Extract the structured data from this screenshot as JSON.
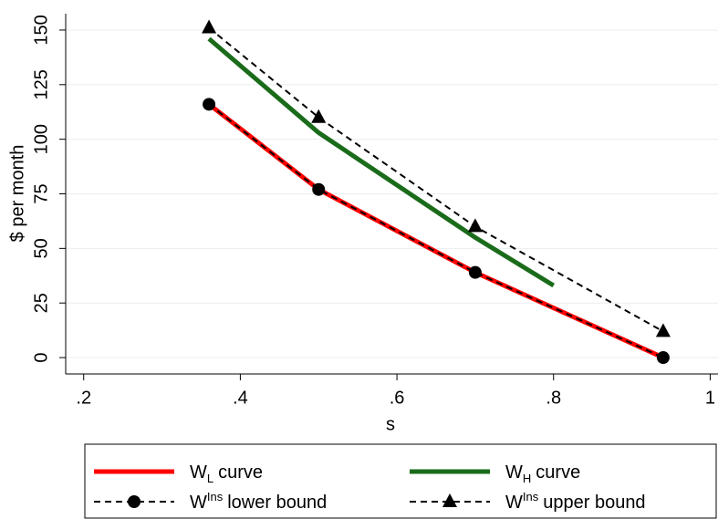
{
  "chart_data": {
    "type": "line",
    "xlabel": "s",
    "ylabel": "$ per month",
    "xlim": [
      0.177,
      1.01
    ],
    "ylim": [
      -7.5,
      157.5
    ],
    "xticks": [
      {
        "value": 0.2,
        "label": ".2"
      },
      {
        "value": 0.4,
        "label": ".4"
      },
      {
        "value": 0.6,
        "label": ".6"
      },
      {
        "value": 0.8,
        "label": ".8"
      },
      1
    ],
    "yticks": [
      0,
      25,
      50,
      75,
      100,
      125,
      150
    ],
    "grid": true,
    "series": [
      {
        "name": {
          "base": "W",
          "sub": "L",
          "rest": "curve"
        },
        "color": "#ff0000",
        "style": "solid",
        "x": [
          0.36,
          0.5,
          0.7,
          0.94
        ],
        "values": [
          116,
          77,
          39,
          0
        ]
      },
      {
        "name": {
          "base": "W",
          "sub": "H",
          "rest": "curve"
        },
        "color": "#1a6b1a",
        "style": "solid",
        "x": [
          0.36,
          0.5,
          0.7,
          0.8
        ],
        "values": [
          146,
          103,
          55,
          33
        ]
      },
      {
        "name": {
          "base": "W",
          "sup": "Ins",
          "rest": "lower bound"
        },
        "color": "#000000",
        "style": "dashed",
        "marker": "circle",
        "x": [
          0.36,
          0.5,
          0.7,
          0.94
        ],
        "values": [
          116,
          77,
          39,
          0
        ]
      },
      {
        "name": {
          "base": "W",
          "sup": "Ins",
          "rest": "upper bound"
        },
        "color": "#000000",
        "style": "dashed",
        "marker": "triangle",
        "x": [
          0.36,
          0.5,
          0.7,
          0.94
        ],
        "values": [
          151,
          110,
          60,
          12
        ]
      }
    ]
  }
}
